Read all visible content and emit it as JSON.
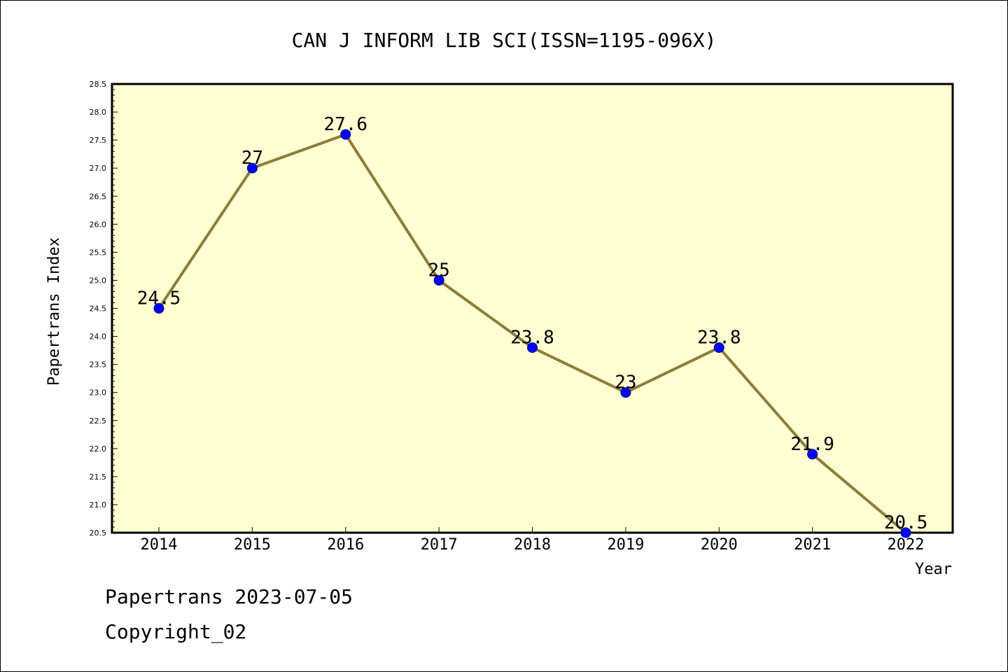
{
  "chart_data": {
    "type": "line",
    "title": "CAN J INFORM LIB SCI(ISSN=1195-096X)",
    "xlabel": "Year",
    "ylabel": "Papertrans Index",
    "categories": [
      "2014",
      "2015",
      "2016",
      "2017",
      "2018",
      "2019",
      "2020",
      "2021",
      "2022"
    ],
    "series": [
      {
        "values": [
          24.5,
          27,
          27.6,
          25,
          23.8,
          23,
          23.8,
          21.9,
          20.5
        ],
        "labels": [
          "24.5",
          "27",
          "27.6",
          "25",
          "23.8",
          "23",
          "23.8",
          "21.9",
          "20.5"
        ]
      }
    ],
    "ylim": [
      20.5,
      28.5
    ],
    "yticks": [
      "20.5",
      "21.0",
      "21.5",
      "22.0",
      "22.5",
      "23.0",
      "23.5",
      "24.0",
      "24.5",
      "25.0",
      "25.5",
      "26.0",
      "26.5",
      "27.0",
      "27.5",
      "28.0",
      "28.5"
    ],
    "grid": false,
    "legend": "none",
    "colors": {
      "plot_background": "#ffffd2",
      "line": "#8b7d3a",
      "marker": "#0000ff",
      "marker_edge": "#00008b"
    }
  },
  "footer": {
    "line1": "Papertrans 2023-07-05",
    "line2": "Copyright_02"
  }
}
